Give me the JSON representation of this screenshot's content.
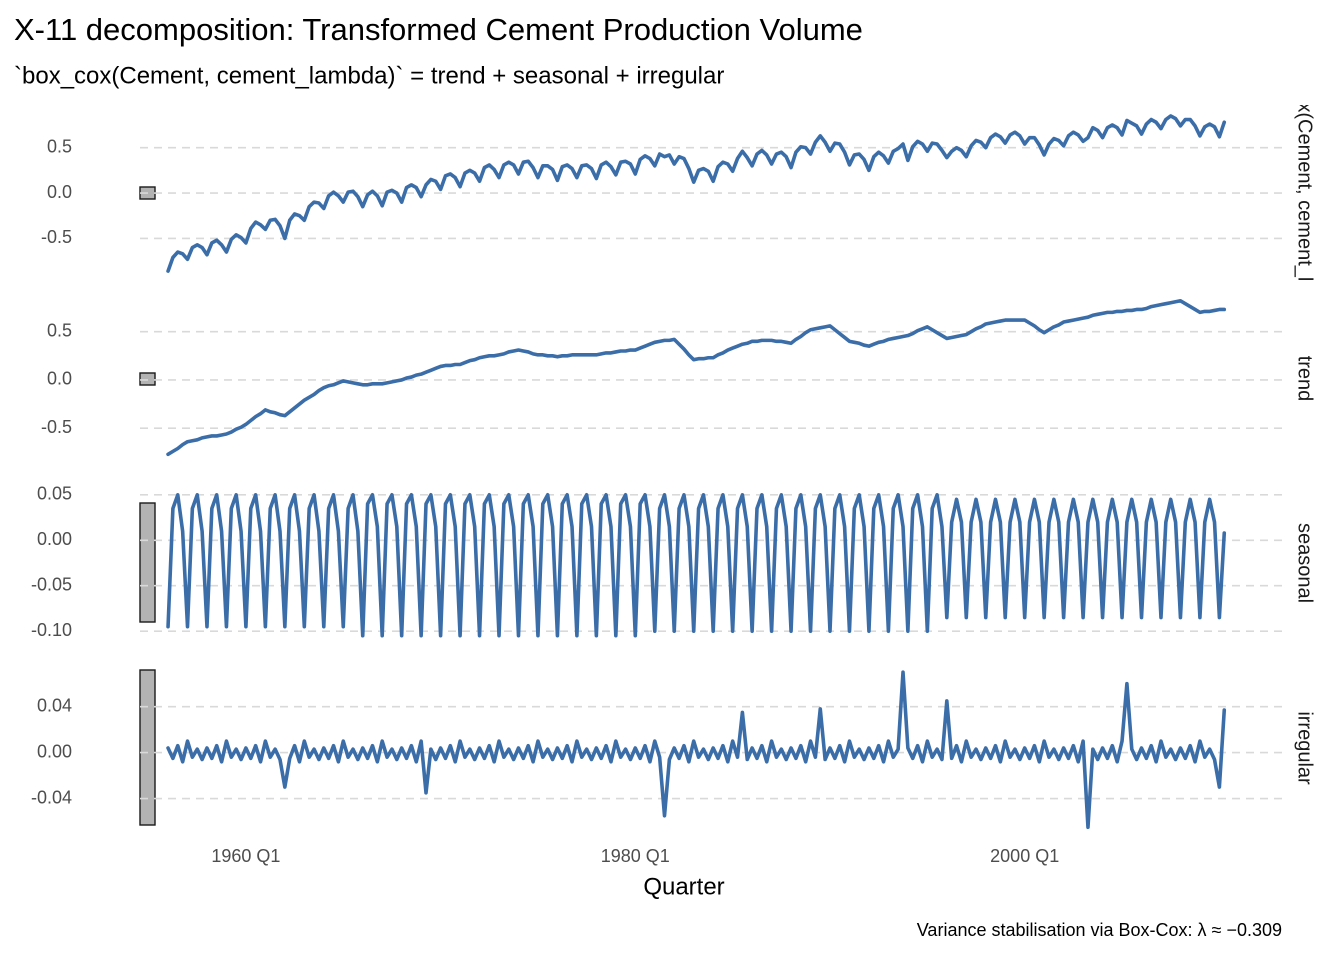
{
  "chart_data": {
    "type": "line",
    "title": "X-11 decomposition: Transformed Cement Production Volume",
    "subtitle": "`box_cox(Cement, cement_lambda)` = trend + seasonal + irregular",
    "x_label": "Quarter",
    "caption": "Variance stabilisation via Box-Cox: λ ≈ −0.309",
    "color": "#3b6ea8",
    "grid": true,
    "xlim": [
      1954.56,
      2013.37
    ],
    "xticks": [
      {
        "value": 1960,
        "label": "1960 Q1"
      },
      {
        "value": 1980,
        "label": "1980 Q1"
      },
      {
        "value": 2000,
        "label": "2000 Q1"
      }
    ],
    "x": [
      1956,
      1956.25,
      1956.5,
      1956.75,
      1957,
      1957.25,
      1957.5,
      1957.75,
      1958,
      1958.25,
      1958.5,
      1958.75,
      1959,
      1959.25,
      1959.5,
      1959.75,
      1960,
      1960.25,
      1960.5,
      1960.75,
      1961,
      1961.25,
      1961.5,
      1961.75,
      1962,
      1962.25,
      1962.5,
      1962.75,
      1963,
      1963.25,
      1963.5,
      1963.75,
      1964,
      1964.25,
      1964.5,
      1964.75,
      1965,
      1965.25,
      1965.5,
      1965.75,
      1966,
      1966.25,
      1966.5,
      1966.75,
      1967,
      1967.25,
      1967.5,
      1967.75,
      1968,
      1968.25,
      1968.5,
      1968.75,
      1969,
      1969.25,
      1969.5,
      1969.75,
      1970,
      1970.25,
      1970.5,
      1970.75,
      1971,
      1971.25,
      1971.5,
      1971.75,
      1972,
      1972.25,
      1972.5,
      1972.75,
      1973,
      1973.25,
      1973.5,
      1973.75,
      1974,
      1974.25,
      1974.5,
      1974.75,
      1975,
      1975.25,
      1975.5,
      1975.75,
      1976,
      1976.25,
      1976.5,
      1976.75,
      1977,
      1977.25,
      1977.5,
      1977.75,
      1978,
      1978.25,
      1978.5,
      1978.75,
      1979,
      1979.25,
      1979.5,
      1979.75,
      1980,
      1980.25,
      1980.5,
      1980.75,
      1981,
      1981.25,
      1981.5,
      1981.75,
      1982,
      1982.25,
      1982.5,
      1982.75,
      1983,
      1983.25,
      1983.5,
      1983.75,
      1984,
      1984.25,
      1984.5,
      1984.75,
      1985,
      1985.25,
      1985.5,
      1985.75,
      1986,
      1986.25,
      1986.5,
      1986.75,
      1987,
      1987.25,
      1987.5,
      1987.75,
      1988,
      1988.25,
      1988.5,
      1988.75,
      1989,
      1989.25,
      1989.5,
      1989.75,
      1990,
      1990.25,
      1990.5,
      1990.75,
      1991,
      1991.25,
      1991.5,
      1991.75,
      1992,
      1992.25,
      1992.5,
      1992.75,
      1993,
      1993.25,
      1993.5,
      1993.75,
      1994,
      1994.25,
      1994.5,
      1994.75,
      1995,
      1995.25,
      1995.5,
      1995.75,
      1996,
      1996.25,
      1996.5,
      1996.75,
      1997,
      1997.25,
      1997.5,
      1997.75,
      1998,
      1998.25,
      1998.5,
      1998.75,
      1999,
      1999.25,
      1999.5,
      1999.75,
      2000,
      2000.25,
      2000.5,
      2000.75,
      2001,
      2001.25,
      2001.5,
      2001.75,
      2002,
      2002.25,
      2002.5,
      2002.75,
      2003,
      2003.25,
      2003.5,
      2003.75,
      2004,
      2004.25,
      2004.5,
      2004.75,
      2005,
      2005.25,
      2005.5,
      2005.75,
      2006,
      2006.25,
      2006.5,
      2006.75,
      2007,
      2007.25,
      2007.5,
      2007.75,
      2008,
      2008.25,
      2008.5,
      2008.75,
      2009,
      2009.25,
      2009.5,
      2009.75,
      2010,
      2010.25
    ],
    "panels": [
      {
        "name": "`box_cox(Cement, cement_lambda)`",
        "ylim": [
          -0.98,
          0.97
        ],
        "yticks": [
          -0.5,
          {
            "value": 0,
            "label": "0.0"
          },
          0.5
        ],
        "values": [
          -0.86,
          -0.71,
          -0.65,
          -0.67,
          -0.73,
          -0.6,
          -0.57,
          -0.6,
          -0.68,
          -0.55,
          -0.52,
          -0.57,
          -0.65,
          -0.51,
          -0.46,
          -0.49,
          -0.55,
          -0.39,
          -0.32,
          -0.35,
          -0.4,
          -0.3,
          -0.29,
          -0.36,
          -0.5,
          -0.3,
          -0.23,
          -0.25,
          -0.3,
          -0.15,
          -0.1,
          -0.11,
          -0.17,
          -0.03,
          0.01,
          -0.03,
          -0.1,
          0.01,
          0.02,
          -0.04,
          -0.15,
          -0.02,
          0.02,
          -0.03,
          -0.14,
          0.01,
          0.03,
          0.0,
          -0.1,
          0.06,
          0.09,
          0.06,
          -0.04,
          0.09,
          0.15,
          0.13,
          0.04,
          0.19,
          0.21,
          0.17,
          0.07,
          0.22,
          0.25,
          0.22,
          0.13,
          0.28,
          0.31,
          0.26,
          0.17,
          0.31,
          0.34,
          0.31,
          0.21,
          0.34,
          0.35,
          0.28,
          0.17,
          0.3,
          0.3,
          0.26,
          0.14,
          0.29,
          0.31,
          0.27,
          0.17,
          0.3,
          0.31,
          0.27,
          0.16,
          0.31,
          0.34,
          0.29,
          0.2,
          0.34,
          0.35,
          0.32,
          0.21,
          0.37,
          0.41,
          0.38,
          0.3,
          0.43,
          0.4,
          0.42,
          0.32,
          0.4,
          0.38,
          0.27,
          0.12,
          0.25,
          0.27,
          0.24,
          0.13,
          0.29,
          0.34,
          0.32,
          0.24,
          0.38,
          0.46,
          0.39,
          0.3,
          0.43,
          0.47,
          0.42,
          0.32,
          0.43,
          0.45,
          0.4,
          0.28,
          0.45,
          0.51,
          0.5,
          0.43,
          0.56,
          0.63,
          0.56,
          0.46,
          0.55,
          0.54,
          0.45,
          0.31,
          0.42,
          0.43,
          0.37,
          0.25,
          0.4,
          0.45,
          0.41,
          0.33,
          0.46,
          0.49,
          0.54,
          0.36,
          0.51,
          0.57,
          0.54,
          0.46,
          0.55,
          0.54,
          0.47,
          0.39,
          0.46,
          0.5,
          0.47,
          0.4,
          0.52,
          0.58,
          0.56,
          0.5,
          0.61,
          0.65,
          0.62,
          0.55,
          0.64,
          0.67,
          0.63,
          0.54,
          0.61,
          0.61,
          0.53,
          0.42,
          0.54,
          0.6,
          0.58,
          0.52,
          0.63,
          0.67,
          0.64,
          0.57,
          0.61,
          0.72,
          0.69,
          0.61,
          0.72,
          0.75,
          0.72,
          0.64,
          0.8,
          0.77,
          0.74,
          0.65,
          0.76,
          0.81,
          0.78,
          0.71,
          0.81,
          0.85,
          0.82,
          0.74,
          0.81,
          0.81,
          0.74,
          0.63,
          0.73,
          0.76,
          0.73,
          0.62,
          0.78
        ]
      },
      {
        "name": "trend",
        "ylim": [
          -0.85,
          0.88
        ],
        "yticks": [
          -0.5,
          {
            "value": 0,
            "label": "0.0"
          },
          0.5
        ],
        "values": [
          -0.77,
          -0.74,
          -0.71,
          -0.67,
          -0.64,
          -0.63,
          -0.62,
          -0.6,
          -0.59,
          -0.58,
          -0.58,
          -0.57,
          -0.56,
          -0.54,
          -0.51,
          -0.49,
          -0.46,
          -0.42,
          -0.38,
          -0.35,
          -0.31,
          -0.33,
          -0.34,
          -0.36,
          -0.37,
          -0.33,
          -0.29,
          -0.25,
          -0.21,
          -0.18,
          -0.15,
          -0.11,
          -0.08,
          -0.06,
          -0.05,
          -0.03,
          -0.01,
          -0.02,
          -0.03,
          -0.04,
          -0.05,
          -0.05,
          -0.04,
          -0.04,
          -0.04,
          -0.03,
          -0.02,
          -0.01,
          0.0,
          0.02,
          0.03,
          0.05,
          0.06,
          0.08,
          0.1,
          0.12,
          0.14,
          0.15,
          0.15,
          0.16,
          0.16,
          0.18,
          0.2,
          0.21,
          0.23,
          0.24,
          0.25,
          0.25,
          0.26,
          0.27,
          0.29,
          0.3,
          0.31,
          0.3,
          0.29,
          0.27,
          0.26,
          0.26,
          0.25,
          0.25,
          0.24,
          0.25,
          0.25,
          0.26,
          0.26,
          0.26,
          0.26,
          0.26,
          0.26,
          0.27,
          0.28,
          0.28,
          0.29,
          0.3,
          0.3,
          0.31,
          0.31,
          0.33,
          0.35,
          0.37,
          0.39,
          0.4,
          0.41,
          0.41,
          0.42,
          0.37,
          0.32,
          0.26,
          0.21,
          0.22,
          0.22,
          0.23,
          0.23,
          0.26,
          0.28,
          0.31,
          0.33,
          0.35,
          0.37,
          0.38,
          0.4,
          0.4,
          0.41,
          0.41,
          0.41,
          0.4,
          0.4,
          0.39,
          0.38,
          0.42,
          0.45,
          0.49,
          0.52,
          0.53,
          0.54,
          0.55,
          0.56,
          0.52,
          0.48,
          0.44,
          0.4,
          0.39,
          0.38,
          0.36,
          0.35,
          0.37,
          0.39,
          0.4,
          0.42,
          0.43,
          0.44,
          0.45,
          0.46,
          0.48,
          0.51,
          0.53,
          0.55,
          0.52,
          0.49,
          0.46,
          0.43,
          0.44,
          0.45,
          0.46,
          0.47,
          0.5,
          0.53,
          0.55,
          0.58,
          0.59,
          0.6,
          0.61,
          0.62,
          0.62,
          0.62,
          0.62,
          0.62,
          0.59,
          0.56,
          0.52,
          0.49,
          0.52,
          0.55,
          0.57,
          0.6,
          0.61,
          0.62,
          0.63,
          0.64,
          0.65,
          0.67,
          0.68,
          0.69,
          0.7,
          0.7,
          0.71,
          0.71,
          0.72,
          0.72,
          0.73,
          0.73,
          0.74,
          0.76,
          0.77,
          0.78,
          0.79,
          0.8,
          0.81,
          0.82,
          0.79,
          0.76,
          0.73,
          0.7,
          0.71,
          0.71,
          0.72,
          0.73,
          0.73
        ]
      },
      {
        "name": "seasonal",
        "ylim": [
          -0.113,
          0.063
        ],
        "yticks": [
          {
            "value": -0.1,
            "label": "-0.10"
          },
          -0.05,
          {
            "value": 0,
            "label": "0.00"
          },
          0.05
        ],
        "values": [
          -0.095,
          0.035,
          0.05,
          0.01,
          -0.095,
          0.035,
          0.05,
          0.01,
          -0.095,
          0.035,
          0.05,
          0.01,
          -0.095,
          0.035,
          0.05,
          0.01,
          -0.095,
          0.035,
          0.05,
          0.01,
          -0.095,
          0.035,
          0.05,
          0.01,
          -0.095,
          0.035,
          0.05,
          0.01,
          -0.095,
          0.035,
          0.05,
          0.01,
          -0.095,
          0.035,
          0.05,
          0.01,
          -0.095,
          0.035,
          0.05,
          0.01,
          -0.105,
          0.04,
          0.05,
          0.015,
          -0.105,
          0.04,
          0.05,
          0.015,
          -0.105,
          0.04,
          0.05,
          0.015,
          -0.105,
          0.04,
          0.05,
          0.015,
          -0.105,
          0.04,
          0.05,
          0.015,
          -0.105,
          0.04,
          0.05,
          0.015,
          -0.105,
          0.04,
          0.05,
          0.015,
          -0.105,
          0.04,
          0.05,
          0.015,
          -0.105,
          0.04,
          0.05,
          0.015,
          -0.105,
          0.04,
          0.05,
          0.015,
          -0.105,
          0.04,
          0.05,
          0.015,
          -0.105,
          0.04,
          0.05,
          0.015,
          -0.105,
          0.04,
          0.05,
          0.015,
          -0.105,
          0.04,
          0.05,
          0.015,
          -0.105,
          0.04,
          0.05,
          0.015,
          -0.1,
          0.035,
          0.05,
          0.015,
          -0.1,
          0.035,
          0.05,
          0.015,
          -0.1,
          0.035,
          0.05,
          0.015,
          -0.1,
          0.035,
          0.05,
          0.015,
          -0.1,
          0.035,
          0.05,
          0.015,
          -0.1,
          0.035,
          0.05,
          0.015,
          -0.1,
          0.035,
          0.05,
          0.015,
          -0.1,
          0.035,
          0.05,
          0.015,
          -0.1,
          0.035,
          0.05,
          0.015,
          -0.1,
          0.035,
          0.05,
          0.015,
          -0.1,
          0.035,
          0.05,
          0.015,
          -0.1,
          0.035,
          0.05,
          0.015,
          -0.1,
          0.035,
          0.05,
          0.015,
          -0.1,
          0.035,
          0.05,
          0.015,
          -0.1,
          0.035,
          0.05,
          0.015,
          -0.085,
          0.02,
          0.045,
          0.02,
          -0.085,
          0.02,
          0.045,
          0.02,
          -0.085,
          0.02,
          0.045,
          0.02,
          -0.085,
          0.02,
          0.045,
          0.02,
          -0.085,
          0.02,
          0.045,
          0.02,
          -0.085,
          0.02,
          0.045,
          0.02,
          -0.085,
          0.02,
          0.045,
          0.02,
          -0.085,
          0.02,
          0.045,
          0.02,
          -0.085,
          0.02,
          0.045,
          0.02,
          -0.085,
          0.02,
          0.045,
          0.02,
          -0.085,
          0.02,
          0.045,
          0.02,
          -0.085,
          0.02,
          0.045,
          0.02,
          -0.085,
          0.02,
          0.045,
          0.02,
          -0.085,
          0.02,
          0.045,
          0.02,
          -0.085,
          0.008
        ]
      },
      {
        "name": "irregular",
        "ylim": [
          -0.07,
          0.078
        ],
        "yticks": [
          -0.04,
          {
            "value": 0,
            "label": "0.00"
          },
          0.04
        ],
        "values": [
          0.004,
          -0.005,
          0.006,
          -0.008,
          0.01,
          -0.004,
          0.003,
          -0.006,
          0.004,
          -0.005,
          0.006,
          -0.008,
          0.01,
          -0.004,
          0.003,
          -0.006,
          0.004,
          -0.005,
          0.006,
          -0.008,
          0.01,
          -0.004,
          0.003,
          -0.006,
          -0.03,
          -0.005,
          0.006,
          -0.008,
          0.01,
          -0.004,
          0.003,
          -0.006,
          0.004,
          -0.005,
          0.006,
          -0.008,
          0.01,
          -0.004,
          0.003,
          -0.006,
          0.004,
          -0.005,
          0.006,
          -0.008,
          0.01,
          -0.004,
          0.003,
          -0.006,
          0.004,
          -0.005,
          0.006,
          -0.008,
          0.01,
          -0.035,
          0.003,
          -0.006,
          0.004,
          -0.005,
          0.006,
          -0.008,
          0.01,
          -0.004,
          0.003,
          -0.006,
          0.004,
          -0.005,
          0.006,
          -0.008,
          0.01,
          -0.004,
          0.003,
          -0.006,
          0.004,
          -0.005,
          0.006,
          -0.008,
          0.01,
          -0.004,
          0.003,
          -0.006,
          0.004,
          -0.005,
          0.006,
          -0.008,
          0.01,
          -0.004,
          0.003,
          -0.006,
          0.004,
          -0.005,
          0.006,
          -0.008,
          0.01,
          -0.004,
          0.003,
          -0.006,
          0.004,
          -0.005,
          0.006,
          -0.008,
          0.01,
          -0.004,
          -0.055,
          -0.006,
          0.004,
          -0.005,
          0.006,
          -0.008,
          0.01,
          -0.004,
          0.003,
          -0.006,
          0.004,
          -0.005,
          0.006,
          -0.008,
          0.01,
          -0.004,
          0.035,
          -0.006,
          0.004,
          -0.005,
          0.006,
          -0.008,
          0.01,
          -0.004,
          0.003,
          -0.006,
          0.004,
          -0.005,
          0.006,
          -0.008,
          0.01,
          -0.004,
          0.038,
          -0.006,
          0.004,
          -0.005,
          0.006,
          -0.008,
          0.01,
          -0.004,
          0.003,
          -0.006,
          0.004,
          -0.005,
          0.006,
          -0.008,
          0.01,
          -0.004,
          0.003,
          0.07,
          0.004,
          -0.005,
          0.006,
          -0.008,
          0.01,
          -0.004,
          0.003,
          -0.006,
          0.045,
          -0.005,
          0.006,
          -0.008,
          0.01,
          -0.004,
          0.003,
          -0.006,
          0.004,
          -0.005,
          0.006,
          -0.008,
          0.01,
          -0.004,
          0.003,
          -0.006,
          0.004,
          -0.005,
          0.006,
          -0.008,
          0.01,
          -0.004,
          0.003,
          -0.006,
          0.004,
          -0.005,
          0.006,
          -0.008,
          0.01,
          -0.065,
          0.003,
          -0.006,
          0.004,
          -0.005,
          0.006,
          -0.008,
          0.01,
          0.06,
          0.003,
          -0.006,
          0.004,
          -0.005,
          0.006,
          -0.008,
          0.01,
          -0.004,
          0.003,
          -0.006,
          0.004,
          -0.005,
          0.006,
          -0.008,
          0.01,
          -0.004,
          0.003,
          -0.006,
          -0.03,
          0.037
        ]
      }
    ]
  }
}
